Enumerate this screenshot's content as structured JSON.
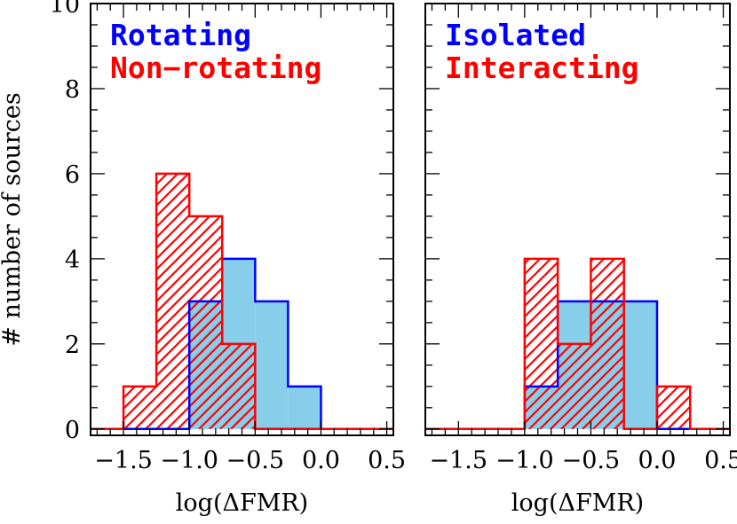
{
  "chart_data": [
    {
      "type": "histogram",
      "panel": "left",
      "xlabel": "log(ΔFMR)",
      "ylabel": "# number of sources",
      "xlim": [
        -1.75,
        0.55
      ],
      "ylim": [
        -0.15,
        10
      ],
      "xticks": [
        -1.5,
        -1.0,
        -0.5,
        0.0,
        0.5
      ],
      "xtick_labels": [
        "−1.5",
        "−1.0",
        "−0.5",
        "0.0",
        "0.5"
      ],
      "yticks": [
        0,
        2,
        4,
        6,
        8,
        10
      ],
      "ytick_labels": [
        "0",
        "2",
        "4",
        "6",
        "8",
        "10"
      ],
      "bin_edges": [
        -1.5,
        -1.25,
        -1.0,
        -0.75,
        -0.5,
        -0.25,
        0.0,
        0.25
      ],
      "series": [
        {
          "name": "Rotating",
          "color": "#0000ff",
          "fill": "#87ceeb",
          "style": "solid",
          "counts": [
            0,
            0,
            3,
            4,
            3,
            1,
            0
          ]
        },
        {
          "name": "Non−rotating",
          "color": "#ff0000",
          "fill": "hatched",
          "style": "hatched",
          "counts": [
            1,
            6,
            5,
            2,
            0,
            0,
            0
          ]
        }
      ],
      "legend_position": "top-left"
    },
    {
      "type": "histogram",
      "panel": "right",
      "xlabel": "log(ΔFMR)",
      "ylabel": "",
      "xlim": [
        -1.75,
        0.55
      ],
      "ylim": [
        -0.15,
        10
      ],
      "xticks": [
        -1.5,
        -1.0,
        -0.5,
        0.0,
        0.5
      ],
      "xtick_labels": [
        "−1.5",
        "−1.0",
        "−0.5",
        "0.0",
        "0.5"
      ],
      "yticks": [
        0,
        2,
        4,
        6,
        8,
        10
      ],
      "ytick_labels": [],
      "bin_edges": [
        -1.0,
        -0.75,
        -0.5,
        -0.25,
        0.0,
        0.25
      ],
      "series": [
        {
          "name": "Isolated",
          "color": "#0000ff",
          "fill": "#87ceeb",
          "style": "solid",
          "counts": [
            1,
            3,
            3,
            3,
            0
          ]
        },
        {
          "name": "Interacting",
          "color": "#ff0000",
          "fill": "hatched",
          "style": "hatched",
          "counts": [
            4,
            2,
            4,
            0,
            1
          ]
        }
      ],
      "legend_position": "top-left"
    }
  ]
}
